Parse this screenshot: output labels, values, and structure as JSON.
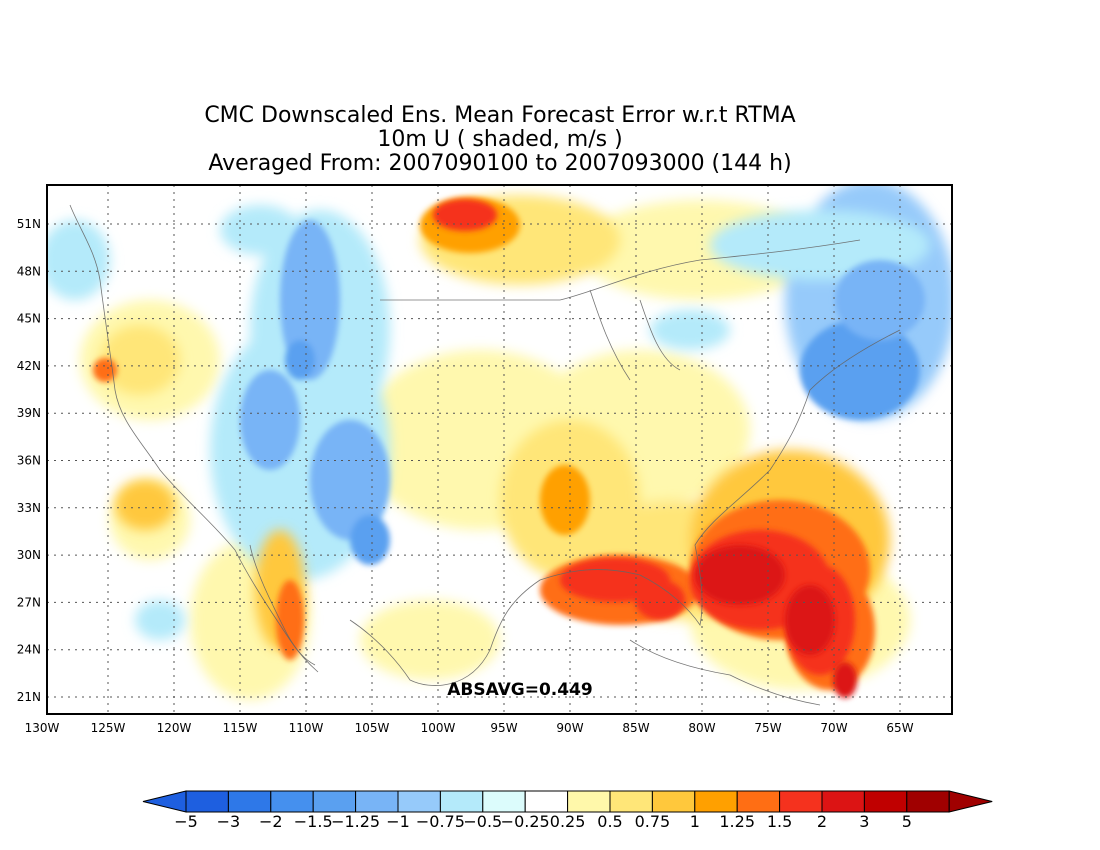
{
  "title": {
    "line1": "CMC Downscaled Ens. Mean Forecast Error w.r.t RTMA",
    "line2": "10m U ( shaded, m/s )",
    "line3": "Averaged From: 2007090100 to 2007093000 (144 h)"
  },
  "map": {
    "lon_labels": [
      "130W",
      "125W",
      "120W",
      "115W",
      "110W",
      "105W",
      "100W",
      "95W",
      "90W",
      "85W",
      "80W",
      "75W",
      "70W",
      "65W"
    ],
    "lat_labels": [
      "51N",
      "48N",
      "45N",
      "42N",
      "39N",
      "36N",
      "33N",
      "30N",
      "27N",
      "24N",
      "21N"
    ],
    "annotation": "ABSAVG=0.449"
  },
  "colorbar": {
    "labels": [
      "−5",
      "−3",
      "−2",
      "−1.5",
      "−1.25",
      "−1",
      "−0.75",
      "−0.5",
      "−0.25",
      "0.25",
      "0.5",
      "0.75",
      "1",
      "1.25",
      "1.5",
      "2",
      "3",
      "5"
    ],
    "colors": [
      "#1e5fe0",
      "#2e78e8",
      "#4590ee",
      "#5aa0f0",
      "#78b4f6",
      "#96cafa",
      "#b4eafa",
      "#dcfcfc",
      "#ffffff",
      "#fff8aa",
      "#ffe678",
      "#ffc83c",
      "#ffa000",
      "#ff6e14",
      "#f5321e",
      "#dc1414",
      "#c00000",
      "#a00000"
    ],
    "low_arrow_color": "#1e5fe0",
    "high_arrow_color": "#a00000"
  }
}
